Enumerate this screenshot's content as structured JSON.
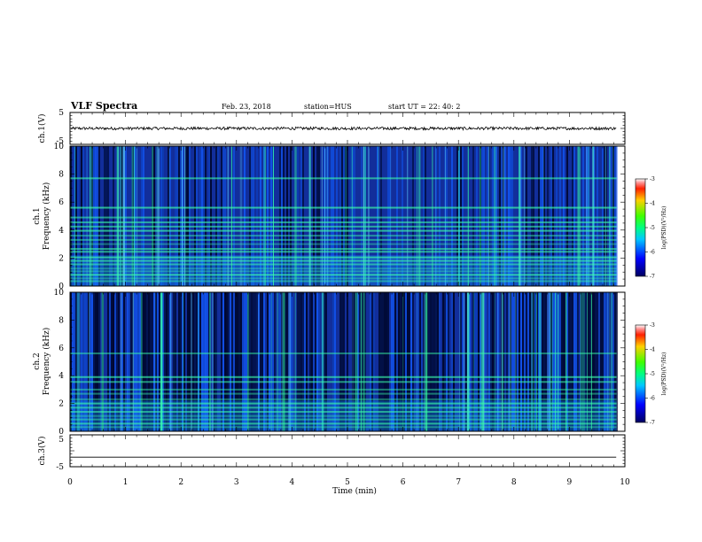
{
  "header": {
    "title": "VLF Spectra",
    "date": "Feb. 23, 2018",
    "station": "station=HUS",
    "start": "start  UT  =   22: 40: 2"
  },
  "chart_data": [
    {
      "type": "line",
      "name": "ch1-waveform",
      "ylabel": "ch.1(V)",
      "ylim": [
        -5,
        5
      ],
      "yticks": [
        "5",
        "-5"
      ],
      "x_range": [
        0,
        9.85
      ],
      "baseline": 0
    },
    {
      "type": "heatmap",
      "name": "ch1-spectrogram",
      "ylabel": "ch.1\nFrequency (kHz)",
      "xlim": [
        0,
        10
      ],
      "ylim": [
        0,
        10
      ],
      "yticks": [
        "0",
        "2",
        "4",
        "6",
        "8",
        "10"
      ],
      "data_x_max": 9.85,
      "interference_lines_khz": [
        0.35,
        0.55,
        0.8,
        1.05,
        1.25,
        1.55,
        1.8,
        2.05,
        2.45,
        2.65,
        3.0,
        3.3,
        3.6,
        3.95,
        4.25,
        4.55,
        4.9,
        5.6,
        7.7
      ],
      "colorbar": {
        "label": "log(PSD)(V²/Hz)",
        "ticks": [
          "-3",
          "-4",
          "-5",
          "-6",
          "-7"
        ],
        "range": [
          -7,
          -3
        ]
      }
    },
    {
      "type": "heatmap",
      "name": "ch2-spectrogram",
      "ylabel": "ch.2\nFrequency (kHz)",
      "xlim": [
        0,
        10
      ],
      "ylim": [
        0,
        10
      ],
      "yticks": [
        "0",
        "2",
        "4",
        "6",
        "8",
        "10"
      ],
      "data_x_max": 9.85,
      "interference_lines_khz": [
        0.3,
        0.55,
        0.85,
        1.1,
        1.4,
        1.7,
        2.0,
        2.3,
        2.7,
        3.0,
        3.55,
        3.9,
        5.6
      ],
      "colorbar": {
        "label": "log(PSD)(V²/Hz)",
        "ticks": [
          "-3",
          "-4",
          "-5",
          "-6",
          "-7"
        ],
        "range": [
          -7,
          -3
        ]
      }
    },
    {
      "type": "line",
      "name": "ch3-waveform",
      "ylabel": "ch.3(V)",
      "ylim": [
        -5,
        5
      ],
      "yticks": [
        "5",
        "0",
        "-5"
      ],
      "x_range": [
        0,
        9.85
      ],
      "baseline": -2
    }
  ],
  "xaxis": {
    "label": "Time  (min)",
    "ticks": [
      "0",
      "1",
      "2",
      "3",
      "4",
      "5",
      "6",
      "7",
      "8",
      "9",
      "10"
    ],
    "xlim": [
      0,
      10
    ]
  },
  "colors": {
    "background": "#ffffff",
    "ink": "#000000",
    "spectro_low": "#000a3c",
    "spectro_mid": "#1466ff",
    "spectro_high": "#33ff99"
  }
}
